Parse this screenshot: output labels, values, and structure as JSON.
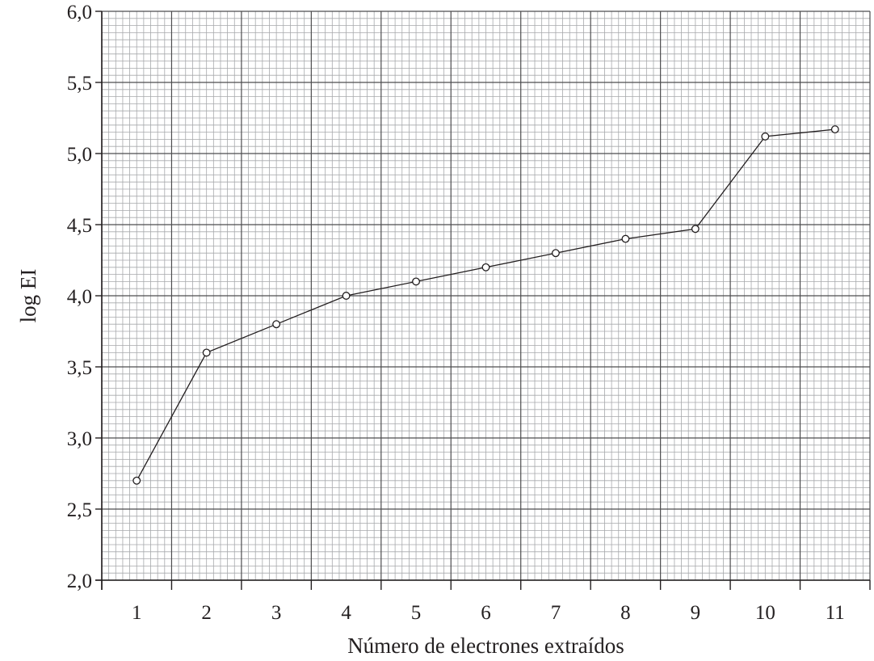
{
  "chart_data": {
    "type": "line",
    "title": "",
    "xlabel": "Número de electrones extraídos",
    "ylabel": "log EI",
    "x": [
      1,
      2,
      3,
      4,
      5,
      6,
      7,
      8,
      9,
      10,
      11
    ],
    "series": [
      {
        "values": [
          2.7,
          3.6,
          3.8,
          4.0,
          4.1,
          4.2,
          4.3,
          4.4,
          4.47,
          5.12,
          5.17
        ]
      }
    ],
    "ylim": [
      2.0,
      6.0
    ],
    "xlim": [
      0.5,
      11.5
    ],
    "y_ticks": [
      "2,0",
      "2,5",
      "3,0",
      "3,5",
      "4,0",
      "4,5",
      "5,0",
      "5,5",
      "6,0"
    ],
    "x_ticks": [
      "1",
      "2",
      "3",
      "4",
      "5",
      "6",
      "7",
      "8",
      "9",
      "10",
      "11"
    ],
    "grid": true,
    "marker": "open-circle",
    "colors": {
      "line": "#231f20",
      "grid_minor": "#a7a9ac",
      "grid_major": "#4d4d4f"
    }
  }
}
